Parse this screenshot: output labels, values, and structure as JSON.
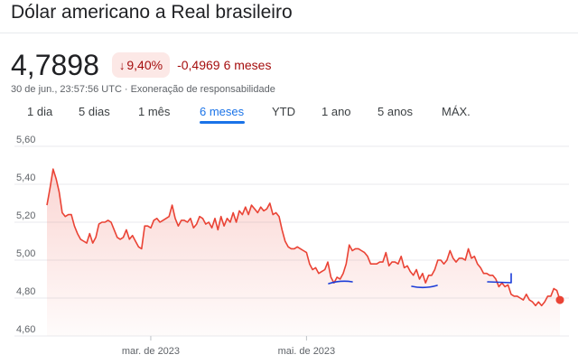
{
  "header": {
    "title": "Dólar americano a Real brasileiro"
  },
  "quote": {
    "price": "4,7898",
    "change_percent": "9,40%",
    "change_direction_icon": "arrow-down-icon",
    "change_abs": "-0,4969",
    "change_period": "6 meses",
    "timestamp": "30 de jun., 23:57:56 UTC",
    "separator": "·",
    "disclaimer": "Exoneração de responsabilidade"
  },
  "tabs": [
    {
      "label": "1 dia"
    },
    {
      "label": "5 dias"
    },
    {
      "label": "1 mês"
    },
    {
      "label": "6 meses",
      "active": true
    },
    {
      "label": "YTD"
    },
    {
      "label": "1 ano"
    },
    {
      "label": "5 anos"
    },
    {
      "label": "MÁX."
    }
  ],
  "colors": {
    "line": "#ea4335",
    "negative": "#a50e0e",
    "badge_bg": "#fce8e6",
    "accent": "#1a73e8",
    "annotation": "#1a3cd8"
  },
  "chart_data": {
    "type": "area",
    "ylim": [
      4.6,
      5.6
    ],
    "yticks": [
      "5,60",
      "5,40",
      "5,20",
      "5,00",
      "4,80",
      "4,60"
    ],
    "ytick_values": [
      5.6,
      5.4,
      5.2,
      5.0,
      4.8,
      4.6
    ],
    "xticks": [
      {
        "label": "mar. de 2023",
        "index": 34
      },
      {
        "label": "mai. de 2023",
        "index": 85
      }
    ],
    "values": [
      5.29,
      5.38,
      5.48,
      5.43,
      5.36,
      5.25,
      5.23,
      5.24,
      5.24,
      5.18,
      5.14,
      5.11,
      5.1,
      5.09,
      5.14,
      5.09,
      5.12,
      5.19,
      5.2,
      5.2,
      5.21,
      5.2,
      5.16,
      5.12,
      5.11,
      5.12,
      5.16,
      5.11,
      5.13,
      5.1,
      5.07,
      5.06,
      5.18,
      5.18,
      5.17,
      5.21,
      5.22,
      5.2,
      5.21,
      5.22,
      5.23,
      5.29,
      5.22,
      5.18,
      5.21,
      5.21,
      5.2,
      5.22,
      5.17,
      5.19,
      5.23,
      5.22,
      5.19,
      5.2,
      5.17,
      5.22,
      5.16,
      5.23,
      5.18,
      5.22,
      5.2,
      5.25,
      5.2,
      5.26,
      5.24,
      5.28,
      5.24,
      5.29,
      5.27,
      5.25,
      5.28,
      5.26,
      5.27,
      5.3,
      5.24,
      5.25,
      5.23,
      5.16,
      5.1,
      5.07,
      5.06,
      5.06,
      5.07,
      5.06,
      5.05,
      5.04,
      4.98,
      4.95,
      4.96,
      4.93,
      4.94,
      4.95,
      4.99,
      4.91,
      4.88,
      4.91,
      4.9,
      4.93,
      4.98,
      5.08,
      5.05,
      5.06,
      5.06,
      5.05,
      5.04,
      5.02,
      4.98,
      4.98,
      4.98,
      4.99,
      4.99,
      5.04,
      4.97,
      4.99,
      4.99,
      4.98,
      5.02,
      4.96,
      4.97,
      4.94,
      4.92,
      4.95,
      4.9,
      4.93,
      4.88,
      4.92,
      4.92,
      4.95,
      5.0,
      5.0,
      4.98,
      5.0,
      5.05,
      5.01,
      4.99,
      5.01,
      5.01,
      5.0,
      5.06,
      5.01,
      5.02,
      4.98,
      4.96,
      4.93,
      4.93,
      4.92,
      4.92,
      4.9,
      4.86,
      4.88,
      4.86,
      4.87,
      4.82,
      4.81,
      4.81,
      4.8,
      4.79,
      4.82,
      4.79,
      4.78,
      4.76,
      4.78,
      4.76,
      4.78,
      4.81,
      4.81,
      4.85,
      4.84,
      4.79
    ]
  }
}
